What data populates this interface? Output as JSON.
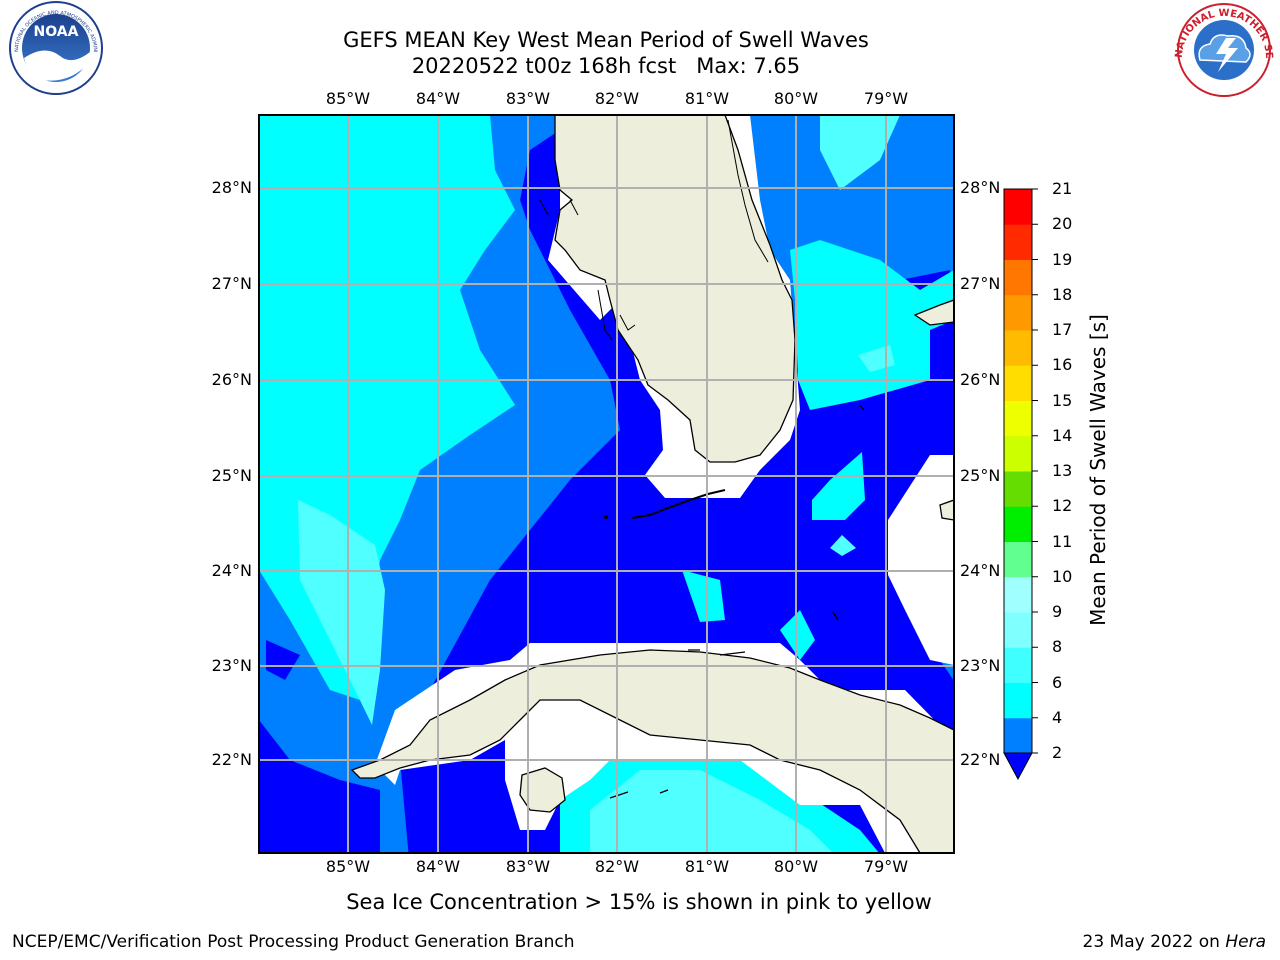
{
  "header": {
    "title_line1": "GEFS MEAN Key West Mean Period of Swell Waves",
    "title_line2": "20220522 t00z 168h fcst   Max: 7.65"
  },
  "map": {
    "lon_labels": [
      "85°W",
      "84°W",
      "83°W",
      "82°W",
      "81°W",
      "80°W",
      "79°W"
    ],
    "lat_labels": [
      "28°N",
      "27°N",
      "26°N",
      "25°N",
      "24°N",
      "23°N",
      "22°N"
    ],
    "land_color": "#eeeedd",
    "grid_color": "#b0b0b0"
  },
  "colorbar": {
    "label": "Mean Period of Swell Waves [s]",
    "ticks": [
      "21",
      "20",
      "19",
      "18",
      "17",
      "16",
      "15",
      "14",
      "13",
      "12",
      "11",
      "10",
      "9",
      "8",
      "6",
      "4",
      "2"
    ],
    "colors": [
      "#0000ff",
      "#0080ff",
      "#00ffff",
      "#40ffff",
      "#80ffff",
      "#a0ffff",
      "#60ff90",
      "#40ff60",
      "#00ee00",
      "#20dd00",
      "#66dd00",
      "#aaee00",
      "#ccff00",
      "#eeff00",
      "#ffff00",
      "#ffdd00",
      "#ffbb00",
      "#ff9900",
      "#ff7700",
      "#ff5500",
      "#ff2a00",
      "#ff0000"
    ]
  },
  "subtitle": "Sea Ice Concentration > 15% is shown in pink to yellow",
  "footer": {
    "left": "NCEP/EMC/Verification Post Processing Product Generation Branch",
    "right_prefix": "23 May 2022 on ",
    "right_host": "Hera"
  },
  "logos": {
    "noaa_text": "NOAA",
    "noaa_ring": "NATIONAL OCEANIC AND ATMOSPHERIC ADMINISTRATION · U.S. DEPARTMENT OF COMMERCE",
    "nws_ring": "NATIONAL WEATHER SERVICE"
  }
}
